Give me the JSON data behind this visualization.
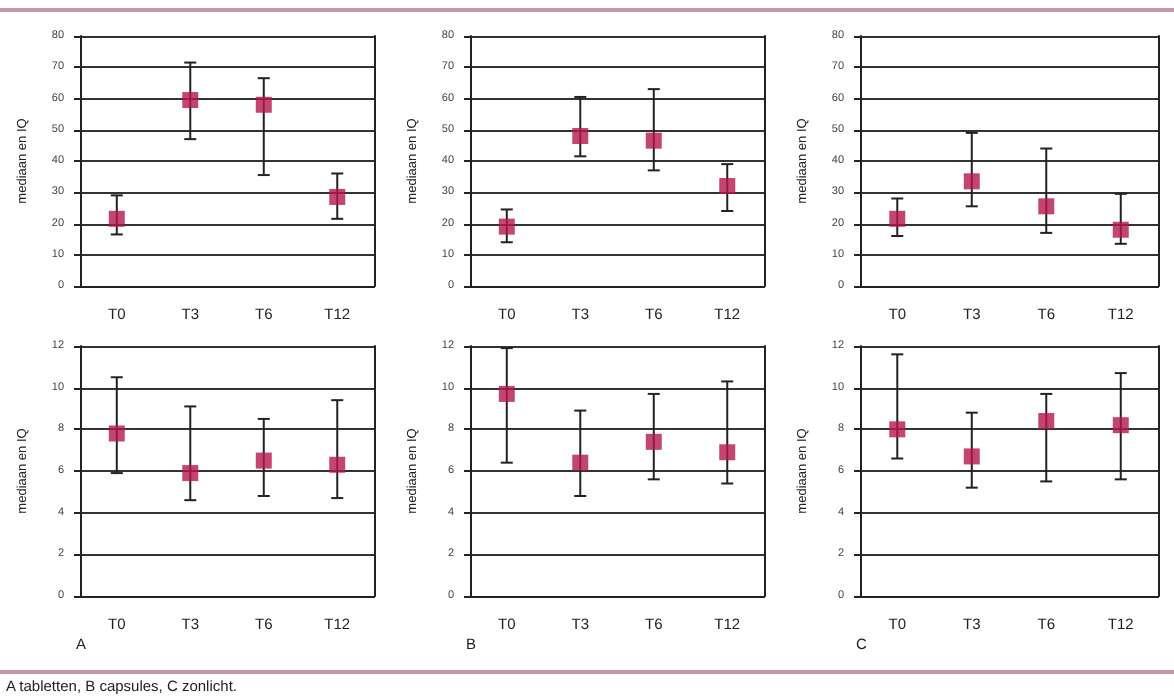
{
  "chart_data": [
    {
      "type": "scatter",
      "ylabel": "mediaan en IQ",
      "categories": [
        "T0",
        "T3",
        "T6",
        "T12"
      ],
      "ylim": [
        0,
        80
      ],
      "yticks": [
        0,
        10,
        20,
        30,
        40,
        50,
        60,
        70,
        80
      ],
      "grid": "y",
      "marker": "square",
      "series": [
        {
          "color": "#b5174b",
          "values": [
            21.5,
            59.5,
            58,
            28.5
          ],
          "errors": [
            [
              16.5,
              29
            ],
            [
              47,
              71.5
            ],
            [
              35.5,
              66.5
            ],
            [
              21.5,
              36
            ]
          ]
        }
      ]
    },
    {
      "type": "scatter",
      "ylabel": "mediaan en IQ",
      "categories": [
        "T0",
        "T3",
        "T6",
        "T12"
      ],
      "ylim": [
        0,
        80
      ],
      "yticks": [
        0,
        10,
        20,
        30,
        40,
        50,
        60,
        70,
        80
      ],
      "grid": "y",
      "marker": "square",
      "series": [
        {
          "color": "#b5174b",
          "values": [
            19,
            48,
            46.5,
            32
          ],
          "errors": [
            [
              14,
              24.5
            ],
            [
              41.5,
              60.5
            ],
            [
              37,
              63
            ],
            [
              24,
              39
            ]
          ]
        }
      ]
    },
    {
      "type": "scatter",
      "ylabel": "mediaan en IQ",
      "categories": [
        "T0",
        "T3",
        "T6",
        "T12"
      ],
      "ylim": [
        0,
        80
      ],
      "yticks": [
        0,
        10,
        20,
        30,
        40,
        50,
        60,
        70,
        80
      ],
      "grid": "y",
      "marker": "square",
      "series": [
        {
          "color": "#b5174b",
          "values": [
            21.5,
            33.5,
            25.5,
            18
          ],
          "errors": [
            [
              16,
              28
            ],
            [
              25.5,
              49
            ],
            [
              17,
              44
            ],
            [
              13.5,
              29.5
            ]
          ]
        }
      ]
    },
    {
      "type": "scatter",
      "ylabel": "mediaan en IQ",
      "categories": [
        "T0",
        "T3",
        "T6",
        "T12"
      ],
      "ylim": [
        0,
        12
      ],
      "yticks": [
        0,
        2,
        4,
        6,
        8,
        10,
        12
      ],
      "grid": "y",
      "marker": "square",
      "annotations": [
        "A",
        "A tabletten, B capsules, C zonlicht."
      ],
      "series": [
        {
          "color": "#b5174b",
          "values": [
            7.8,
            5.9,
            6.5,
            6.3
          ],
          "errors": [
            [
              5.9,
              10.5
            ],
            [
              4.6,
              9.1
            ],
            [
              4.8,
              8.5
            ],
            [
              4.7,
              9.4
            ]
          ]
        }
      ]
    },
    {
      "type": "scatter",
      "ylabel": "mediaan en IQ",
      "categories": [
        "T0",
        "T3",
        "T6",
        "T12"
      ],
      "ylim": [
        0,
        12
      ],
      "yticks": [
        0,
        2,
        4,
        6,
        8,
        10,
        12
      ],
      "grid": "y",
      "marker": "square",
      "annotations": [
        "B"
      ],
      "series": [
        {
          "color": "#b5174b",
          "values": [
            9.7,
            6.4,
            7.4,
            6.9
          ],
          "errors": [
            [
              6.4,
              11.9
            ],
            [
              4.8,
              8.9
            ],
            [
              5.6,
              9.7
            ],
            [
              5.4,
              10.3
            ]
          ]
        }
      ]
    },
    {
      "type": "scatter",
      "ylabel": "mediaan en IQ",
      "categories": [
        "T0",
        "T3",
        "T6",
        "T12"
      ],
      "ylim": [
        0,
        12
      ],
      "yticks": [
        0,
        2,
        4,
        6,
        8,
        10,
        12
      ],
      "grid": "y",
      "marker": "square",
      "annotations": [
        "C"
      ],
      "series": [
        {
          "color": "#b5174b",
          "values": [
            8.0,
            6.7,
            8.4,
            8.2
          ],
          "errors": [
            [
              6.6,
              11.6
            ],
            [
              5.2,
              8.8
            ],
            [
              5.5,
              9.7
            ],
            [
              5.6,
              10.7
            ]
          ]
        }
      ]
    }
  ]
}
